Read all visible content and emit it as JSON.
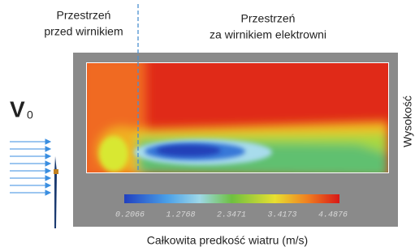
{
  "upstream_label": [
    "Przestrzeń",
    "przed wirnikiem"
  ],
  "downstream_label": [
    "Przestrzeń",
    "za wirnikiem elektrowni"
  ],
  "inflow_symbol": {
    "main": "V",
    "subscript": "0"
  },
  "side_label": "Wysokość",
  "caption": "Całkowita predkość wiatru (m/s)",
  "colorbar": {
    "ticks": [
      0.2066,
      1.2768,
      2.3471,
      3.4173,
      4.4876
    ]
  }
}
